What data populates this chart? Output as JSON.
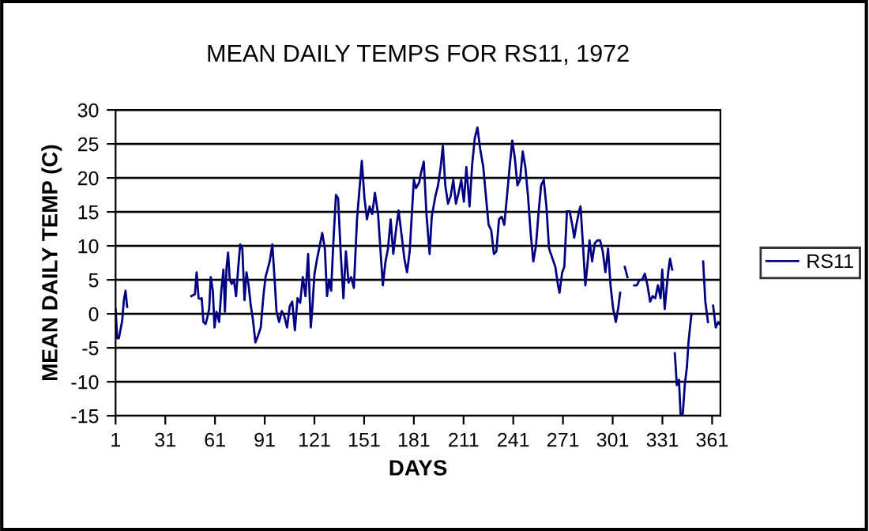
{
  "chart_data": {
    "type": "line",
    "title": "MEAN DAILY TEMPS FOR RS11, 1972",
    "xlabel": "DAYS",
    "ylabel": "MEAN DAILY TEMP (C)",
    "x": [
      1,
      2,
      3,
      5,
      6,
      7,
      8,
      20,
      46.7,
      48.9,
      49.9,
      51.1,
      52.1,
      53.0,
      54.0,
      55.3,
      56.2,
      57.5,
      58.4,
      59.7,
      60.7,
      61.9,
      63.5,
      64.8,
      66.1,
      67.0,
      68.0,
      68.9,
      69.9,
      71.1,
      72.4,
      73.7,
      75.0,
      76.2,
      77.5,
      78.8,
      80.0,
      81.3,
      82.6,
      83.8,
      85.4,
      87.0,
      88.6,
      90.2,
      91.5,
      92.7,
      94.0,
      95.6,
      97.2,
      98.1,
      99.7,
      101.3,
      102.9,
      104.5,
      106.1,
      107.6,
      109.2,
      110.8,
      112.4,
      114.0,
      115.6,
      117.2,
      118.8,
      119.7,
      121.0,
      122.6,
      124.2,
      125.7,
      127.3,
      128.6,
      129.9,
      131.1,
      132.4,
      134.0,
      135.3,
      136.9,
      138.5,
      140.0,
      141.6,
      143.2,
      144.8,
      146.7,
      149.6,
      151.2,
      152.7,
      154.3,
      155.9,
      157.5,
      159.4,
      161.0,
      162.3,
      163.9,
      165.4,
      167.0,
      168.6,
      170.2,
      171.8,
      173.7,
      175.3,
      176.9,
      178.5,
      179.7,
      181.0,
      182.3,
      184.2,
      185.4,
      187.0,
      188.6,
      190.5,
      191.8,
      194.0,
      195.6,
      197.2,
      198.5,
      200.0,
      201.6,
      203.2,
      204.8,
      206.4,
      208.0,
      209.6,
      211.2,
      212.7,
      214.6,
      216.2,
      217.8,
      219.4,
      221.0,
      222.9,
      224.5,
      226.1,
      227.7,
      229.3,
      230.8,
      232.4,
      234.0,
      235.6,
      237.2,
      238.8,
      240.4,
      242.0,
      243.5,
      245.1,
      246.7,
      248.3,
      249.9,
      251.5,
      253.1,
      254.7,
      256.2,
      257.8,
      259.4,
      261.0,
      262.6,
      266.4,
      268.0,
      268.9,
      270.5,
      271.8,
      273.4,
      275.0,
      276.6,
      277.8,
      279.1,
      280.7,
      281.6,
      283.2,
      284.5,
      285.8,
      287.0,
      288.6,
      290.2,
      291.8,
      293.4,
      295.0,
      296.6,
      298.2,
      299.7,
      301.3,
      302.9,
      304.5,
      305.5,
      307,
      308.3,
      309.9,
      312,
      314.0,
      315.6,
      317.2,
      318.8,
      320.4,
      322.0,
      323.6,
      325.1,
      326.7,
      328.3,
      329.9,
      330.9,
      332.4,
      333.7,
      334.7,
      335.6,
      336.9,
      337.7,
      338.5,
      339.7,
      341.0,
      342.0,
      343.2,
      344.5,
      345.8,
      346.7,
      348.0,
      348.6,
      352,
      355.6,
      356.9,
      358.5,
      360,
      361.6,
      363.2,
      364.8,
      366.0
    ],
    "series": [
      {
        "name": "RS11",
        "color": "#000080",
        "values": [
          0.7,
          -3.6,
          -3.6,
          -1,
          2,
          3.4,
          1,
          null,
          2.6,
          2.9,
          6.1,
          2.3,
          2.2,
          2.3,
          -1.2,
          -1.5,
          -0.7,
          0.7,
          5.4,
          3.4,
          -2.0,
          0.3,
          -1.2,
          3.4,
          6.5,
          0.3,
          6.9,
          9.0,
          5.0,
          4.4,
          5.0,
          2.6,
          6.7,
          10.2,
          9.6,
          2.0,
          6.1,
          4.2,
          1.2,
          -0.7,
          -4.2,
          -3.2,
          -2.0,
          2.6,
          5.4,
          6.5,
          7.7,
          10.2,
          4.2,
          0.4,
          -1.2,
          0.4,
          -0.4,
          -2.0,
          1.1,
          1.8,
          -2.4,
          2.3,
          1.6,
          5.4,
          2.6,
          8.8,
          -2.0,
          0.7,
          5.8,
          8.1,
          10.0,
          11.9,
          9.6,
          2.6,
          5.0,
          3.4,
          10.4,
          17.5,
          17.0,
          8.8,
          2.3,
          9.2,
          4.6,
          5.4,
          3.8,
          13.9,
          22.5,
          17.0,
          13.9,
          15.8,
          14.7,
          17.8,
          14.7,
          8.8,
          4.2,
          7.7,
          9.6,
          13.9,
          8.8,
          12.3,
          15.2,
          11.4,
          8.1,
          6.1,
          9.2,
          14.3,
          19.7,
          18.5,
          19.3,
          20.8,
          22.4,
          14.7,
          8.8,
          14.3,
          17.3,
          18.9,
          21.6,
          24.7,
          18.9,
          16.2,
          17.3,
          19.7,
          16.2,
          17.8,
          19.7,
          16.5,
          21.6,
          15.8,
          22.0,
          25.9,
          27.4,
          24.3,
          21.6,
          17.3,
          13.1,
          12.3,
          8.8,
          9.2,
          13.9,
          14.3,
          13.1,
          17.3,
          21.6,
          25.5,
          22.8,
          18.9,
          19.7,
          23.9,
          21.6,
          17.3,
          11.9,
          7.7,
          10.0,
          14.7,
          18.9,
          19.7,
          15.8,
          9.6,
          6.9,
          4.2,
          3.1,
          6.1,
          6.9,
          15.1,
          15.1,
          13.1,
          11.2,
          13.1,
          15.1,
          15.8,
          9.6,
          4.2,
          7.3,
          10.8,
          7.7,
          10.4,
          10.8,
          10.8,
          9.2,
          6.1,
          9.6,
          4.2,
          0.7,
          -1.2,
          1.1,
          3.1,
          null,
          6.9,
          5.4,
          null,
          4.2,
          4.2,
          5.0,
          5.0,
          5.9,
          4.2,
          1.8,
          2.6,
          2.3,
          4.2,
          2.3,
          6.5,
          0.7,
          4.2,
          6.5,
          8.1,
          6.5,
          null,
          -5.8,
          -10.5,
          -9.7,
          -15.0,
          -15.0,
          -10.5,
          -7.8,
          -4.3,
          -1.2,
          0.0,
          null,
          7.7,
          1.8,
          -1.2,
          null,
          1.2,
          -2.0,
          -1.2,
          -1.6
        ]
      }
    ],
    "xlim": [
      1,
      366
    ],
    "xticks": [
      1,
      31,
      61,
      91,
      121,
      151,
      181,
      211,
      241,
      271,
      301,
      331,
      361
    ],
    "ylim": [
      -15,
      30
    ],
    "yticks": [
      -15,
      -10,
      -5,
      0,
      5,
      10,
      15,
      20,
      25,
      30
    ],
    "grid": "y",
    "legend": "right",
    "line_style": "solid",
    "marker": "none"
  }
}
